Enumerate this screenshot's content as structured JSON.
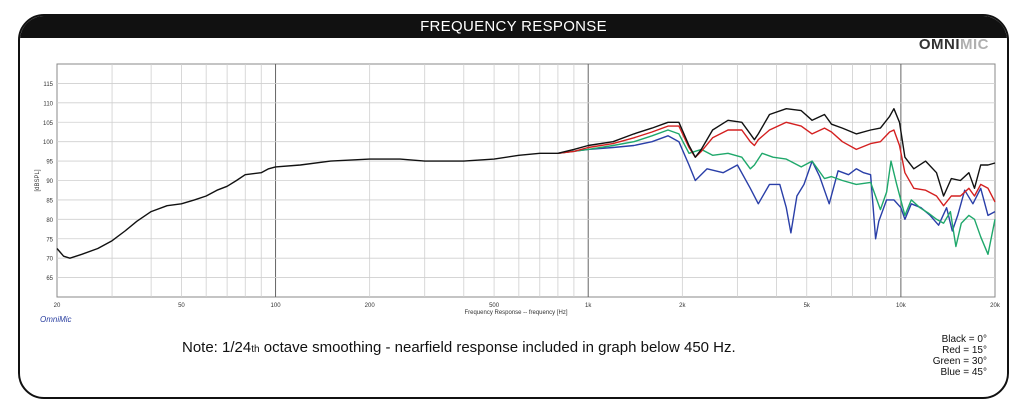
{
  "header": {
    "title": "FREQUENCY RESPONSE",
    "logo_part1": "OMNI",
    "logo_part2": "MIC"
  },
  "software_label": "OmniMic",
  "note": {
    "prefix": "Note: 1/24",
    "sub": "th",
    "suffix": " octave smoothing - nearfield response included in graph below 450 Hz."
  },
  "legend": [
    "Black = 0°",
    "Red = 15°",
    "Green = 30°",
    "Blue = 45°"
  ],
  "chart_data": {
    "type": "line",
    "title": "FREQUENCY RESPONSE",
    "xlabel": "Frequency Response -- frequency [Hz]",
    "ylabel": "[dBSPL]",
    "xscale": "log",
    "xlim": [
      20,
      20000
    ],
    "ylim": [
      60,
      120
    ],
    "grid": true,
    "x_tick_labels": [
      {
        "v": 20,
        "t": "20"
      },
      {
        "v": 50,
        "t": "50"
      },
      {
        "v": 100,
        "t": "100"
      },
      {
        "v": 200,
        "t": "200"
      },
      {
        "v": 500,
        "t": "500"
      },
      {
        "v": 1000,
        "t": "1k"
      },
      {
        "v": 2000,
        "t": "2k"
      },
      {
        "v": 5000,
        "t": "5k"
      },
      {
        "v": 10000,
        "t": "10k"
      },
      {
        "v": 20000,
        "t": "20k"
      }
    ],
    "y_ticks": [
      65,
      70,
      75,
      80,
      85,
      90,
      95,
      100,
      105,
      110,
      115
    ],
    "series": [
      {
        "name": "Black = 0°",
        "color": "#111111",
        "points": [
          [
            20,
            72.5
          ],
          [
            21,
            70.5
          ],
          [
            22,
            70
          ],
          [
            24,
            71
          ],
          [
            27,
            72.5
          ],
          [
            30,
            74.5
          ],
          [
            33,
            77
          ],
          [
            36,
            79.5
          ],
          [
            40,
            82
          ],
          [
            45,
            83.5
          ],
          [
            50,
            84
          ],
          [
            55,
            85
          ],
          [
            60,
            86
          ],
          [
            65,
            87.5
          ],
          [
            70,
            88.5
          ],
          [
            75,
            90
          ],
          [
            80,
            91.5
          ],
          [
            90,
            92
          ],
          [
            95,
            93
          ],
          [
            100,
            93.5
          ],
          [
            120,
            94
          ],
          [
            150,
            95
          ],
          [
            200,
            95.5
          ],
          [
            250,
            95.5
          ],
          [
            300,
            95
          ],
          [
            400,
            95
          ],
          [
            500,
            95.5
          ],
          [
            600,
            96.5
          ],
          [
            700,
            97
          ],
          [
            800,
            97
          ],
          [
            900,
            98
          ],
          [
            1000,
            99
          ],
          [
            1200,
            100
          ],
          [
            1400,
            102
          ],
          [
            1600,
            103.5
          ],
          [
            1800,
            105
          ],
          [
            1950,
            105
          ],
          [
            2100,
            99
          ],
          [
            2200,
            96
          ],
          [
            2300,
            98
          ],
          [
            2500,
            103
          ],
          [
            2800,
            105.5
          ],
          [
            3100,
            105
          ],
          [
            3300,
            102
          ],
          [
            3400,
            100.5
          ],
          [
            3500,
            102
          ],
          [
            3800,
            107
          ],
          [
            4300,
            108.5
          ],
          [
            4800,
            108
          ],
          [
            5200,
            105.5
          ],
          [
            5700,
            107
          ],
          [
            6000,
            104.5
          ],
          [
            6500,
            103.5
          ],
          [
            7200,
            102
          ],
          [
            8000,
            103
          ],
          [
            8600,
            103.5
          ],
          [
            9200,
            106.5
          ],
          [
            9500,
            108.5
          ],
          [
            9900,
            105
          ],
          [
            10300,
            96
          ],
          [
            11000,
            93
          ],
          [
            12000,
            95
          ],
          [
            13000,
            92
          ],
          [
            13700,
            86
          ],
          [
            14500,
            90.5
          ],
          [
            15500,
            90
          ],
          [
            16500,
            92
          ],
          [
            17200,
            88
          ],
          [
            18000,
            94
          ],
          [
            19000,
            94
          ],
          [
            20000,
            94.5
          ]
        ]
      },
      {
        "name": "Red = 15°",
        "color": "#d42020",
        "points": [
          [
            800,
            97
          ],
          [
            900,
            97.5
          ],
          [
            1000,
            98.5
          ],
          [
            1200,
            99.5
          ],
          [
            1400,
            101
          ],
          [
            1600,
            102.5
          ],
          [
            1800,
            104
          ],
          [
            1950,
            104
          ],
          [
            2100,
            98.5
          ],
          [
            2200,
            96
          ],
          [
            2300,
            97.5
          ],
          [
            2500,
            101
          ],
          [
            2800,
            103
          ],
          [
            3100,
            103
          ],
          [
            3300,
            100
          ],
          [
            3400,
            99
          ],
          [
            3500,
            100.5
          ],
          [
            3800,
            103
          ],
          [
            4300,
            105
          ],
          [
            4800,
            104
          ],
          [
            5200,
            102
          ],
          [
            5700,
            103.5
          ],
          [
            6000,
            102.5
          ],
          [
            6500,
            100
          ],
          [
            7200,
            98
          ],
          [
            8000,
            99.5
          ],
          [
            8600,
            100
          ],
          [
            9200,
            102.5
          ],
          [
            9500,
            103
          ],
          [
            9900,
            99
          ],
          [
            10300,
            92
          ],
          [
            11000,
            88
          ],
          [
            12000,
            87.5
          ],
          [
            13000,
            86
          ],
          [
            13700,
            83.5
          ],
          [
            14500,
            86
          ],
          [
            15500,
            86
          ],
          [
            16500,
            88
          ],
          [
            17200,
            86
          ],
          [
            18000,
            89
          ],
          [
            19000,
            88
          ],
          [
            20000,
            84.5
          ]
        ]
      },
      {
        "name": "Green = 30°",
        "color": "#1fa86b",
        "points": [
          [
            800,
            97
          ],
          [
            1000,
            98
          ],
          [
            1200,
            99
          ],
          [
            1400,
            100
          ],
          [
            1600,
            101.5
          ],
          [
            1800,
            103
          ],
          [
            1950,
            102
          ],
          [
            2100,
            97
          ],
          [
            2300,
            98
          ],
          [
            2500,
            96.5
          ],
          [
            2800,
            97
          ],
          [
            3100,
            96
          ],
          [
            3300,
            93
          ],
          [
            3400,
            94
          ],
          [
            3600,
            97
          ],
          [
            3900,
            96
          ],
          [
            4300,
            95.5
          ],
          [
            4800,
            93.5
          ],
          [
            5200,
            95
          ],
          [
            5700,
            90.5
          ],
          [
            6000,
            91
          ],
          [
            6500,
            90
          ],
          [
            7200,
            89
          ],
          [
            8000,
            89.5
          ],
          [
            8600,
            82.5
          ],
          [
            9000,
            87
          ],
          [
            9300,
            95
          ],
          [
            9700,
            89
          ],
          [
            10300,
            81
          ],
          [
            10800,
            85
          ],
          [
            11500,
            83
          ],
          [
            12300,
            81.5
          ],
          [
            13000,
            80
          ],
          [
            13700,
            79
          ],
          [
            14400,
            82
          ],
          [
            15000,
            73
          ],
          [
            15600,
            79
          ],
          [
            16500,
            81
          ],
          [
            17200,
            80
          ],
          [
            18000,
            75.5
          ],
          [
            19000,
            71
          ],
          [
            20000,
            80
          ]
        ]
      },
      {
        "name": "Blue = 45°",
        "color": "#2a3fa8",
        "points": [
          [
            800,
            97
          ],
          [
            1000,
            98
          ],
          [
            1200,
            98.5
          ],
          [
            1400,
            99
          ],
          [
            1600,
            100
          ],
          [
            1800,
            101.5
          ],
          [
            1950,
            100
          ],
          [
            2100,
            94
          ],
          [
            2200,
            90
          ],
          [
            2400,
            93
          ],
          [
            2700,
            92
          ],
          [
            3000,
            94
          ],
          [
            3300,
            88
          ],
          [
            3500,
            84
          ],
          [
            3800,
            89
          ],
          [
            4100,
            89
          ],
          [
            4300,
            83
          ],
          [
            4450,
            76.5
          ],
          [
            4650,
            86
          ],
          [
            4900,
            89
          ],
          [
            5200,
            95
          ],
          [
            5500,
            91
          ],
          [
            5900,
            84
          ],
          [
            6300,
            92.5
          ],
          [
            6800,
            91.5
          ],
          [
            7200,
            93
          ],
          [
            7600,
            92
          ],
          [
            8000,
            91.5
          ],
          [
            8300,
            75
          ],
          [
            8500,
            79.5
          ],
          [
            9000,
            85
          ],
          [
            9500,
            85
          ],
          [
            10000,
            83
          ],
          [
            10300,
            80
          ],
          [
            10800,
            84
          ],
          [
            11600,
            83
          ],
          [
            12400,
            81
          ],
          [
            13200,
            78.5
          ],
          [
            14000,
            83
          ],
          [
            14600,
            77
          ],
          [
            15200,
            81
          ],
          [
            16000,
            87.5
          ],
          [
            17000,
            84
          ],
          [
            18000,
            88
          ],
          [
            19000,
            81
          ],
          [
            20000,
            82
          ]
        ]
      }
    ]
  }
}
